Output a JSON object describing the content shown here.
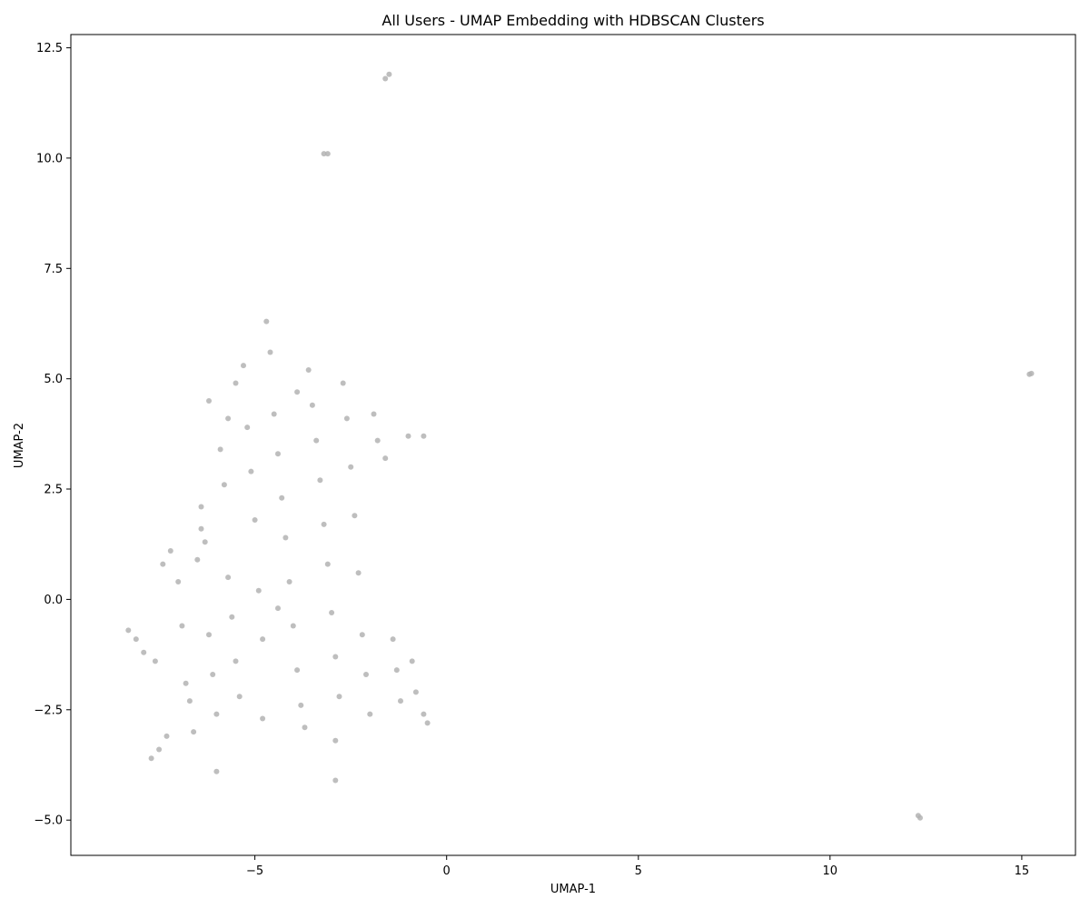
{
  "chart_data": {
    "type": "scatter",
    "title": "All Users - UMAP Embedding with HDBSCAN Clusters",
    "xlabel": "UMAP-1",
    "ylabel": "UMAP-2",
    "xlim": [
      -9.8,
      16.4
    ],
    "ylim": [
      -5.8,
      12.8
    ],
    "xticks": [
      -5,
      0,
      5,
      10,
      15
    ],
    "xtick_labels": [
      "−5",
      "0",
      "5",
      "10",
      "15"
    ],
    "yticks": [
      -5.0,
      -2.5,
      0.0,
      2.5,
      5.0,
      7.5,
      10.0,
      12.5
    ],
    "ytick_labels": [
      "−5.0",
      "−2.5",
      "0.0",
      "2.5",
      "5.0",
      "7.5",
      "10.0",
      "12.5"
    ],
    "grid": false,
    "legend": "none",
    "point_color": "#b3b3b3",
    "series": [
      {
        "points": [
          [
            -8.3,
            -0.7
          ],
          [
            -8.1,
            -0.9
          ],
          [
            -7.9,
            -1.2
          ],
          [
            -7.6,
            -1.4
          ],
          [
            -7.7,
            -3.6
          ],
          [
            -7.5,
            -3.4
          ],
          [
            -7.3,
            -3.1
          ],
          [
            -7.4,
            0.8
          ],
          [
            -7.2,
            1.1
          ],
          [
            -7.0,
            0.4
          ],
          [
            -6.9,
            -0.6
          ],
          [
            -6.8,
            -1.9
          ],
          [
            -6.7,
            -2.3
          ],
          [
            -6.6,
            -3.0
          ],
          [
            -6.5,
            0.9
          ],
          [
            -6.4,
            2.1
          ],
          [
            -6.3,
            1.3
          ],
          [
            -6.2,
            -0.8
          ],
          [
            -6.1,
            -1.7
          ],
          [
            -6.0,
            -2.6
          ],
          [
            -6.0,
            -3.9
          ],
          [
            -6.2,
            4.5
          ],
          [
            -5.9,
            3.4
          ],
          [
            -5.8,
            2.6
          ],
          [
            -5.7,
            0.5
          ],
          [
            -5.6,
            -0.4
          ],
          [
            -5.5,
            -1.4
          ],
          [
            -5.4,
            -2.2
          ],
          [
            -5.5,
            4.9
          ],
          [
            -5.3,
            5.3
          ],
          [
            -5.2,
            3.9
          ],
          [
            -5.1,
            2.9
          ],
          [
            -5.0,
            1.8
          ],
          [
            -4.9,
            0.2
          ],
          [
            -4.8,
            -0.9
          ],
          [
            -4.8,
            -2.7
          ],
          [
            -4.7,
            6.3
          ],
          [
            -4.6,
            5.6
          ],
          [
            -4.5,
            4.2
          ],
          [
            -4.4,
            3.3
          ],
          [
            -4.3,
            2.3
          ],
          [
            -4.2,
            1.4
          ],
          [
            -4.1,
            0.4
          ],
          [
            -4.0,
            -0.6
          ],
          [
            -3.9,
            -1.6
          ],
          [
            -3.8,
            -2.4
          ],
          [
            -3.7,
            -2.9
          ],
          [
            -3.6,
            5.2
          ],
          [
            -3.5,
            4.4
          ],
          [
            -3.4,
            3.6
          ],
          [
            -3.3,
            2.7
          ],
          [
            -3.2,
            1.7
          ],
          [
            -3.1,
            0.8
          ],
          [
            -3.0,
            -0.3
          ],
          [
            -2.9,
            -1.3
          ],
          [
            -2.8,
            -2.2
          ],
          [
            -2.9,
            -3.2
          ],
          [
            -2.9,
            -4.1
          ],
          [
            -2.7,
            4.9
          ],
          [
            -2.6,
            4.1
          ],
          [
            -2.5,
            3.0
          ],
          [
            -2.4,
            1.9
          ],
          [
            -2.3,
            0.6
          ],
          [
            -2.2,
            -0.8
          ],
          [
            -2.1,
            -1.7
          ],
          [
            -2.0,
            -2.6
          ],
          [
            -1.9,
            4.2
          ],
          [
            -1.8,
            3.6
          ],
          [
            -1.6,
            3.2
          ],
          [
            -1.4,
            -0.9
          ],
          [
            -1.3,
            -1.6
          ],
          [
            -1.2,
            -2.3
          ],
          [
            -1.0,
            3.7
          ],
          [
            -0.9,
            -1.4
          ],
          [
            -0.8,
            -2.1
          ],
          [
            -0.6,
            3.7
          ],
          [
            -0.6,
            -2.6
          ],
          [
            -0.5,
            -2.8
          ],
          [
            -5.7,
            4.1
          ],
          [
            -6.4,
            1.6
          ],
          [
            -3.9,
            4.7
          ],
          [
            -4.4,
            -0.2
          ],
          [
            -1.5,
            11.9
          ],
          [
            -1.6,
            11.8
          ],
          [
            -3.1,
            10.1
          ],
          [
            -3.2,
            10.1
          ],
          [
            15.2,
            5.1
          ],
          [
            15.25,
            5.12
          ],
          [
            12.3,
            -4.9
          ],
          [
            12.35,
            -4.95
          ]
        ]
      }
    ]
  }
}
